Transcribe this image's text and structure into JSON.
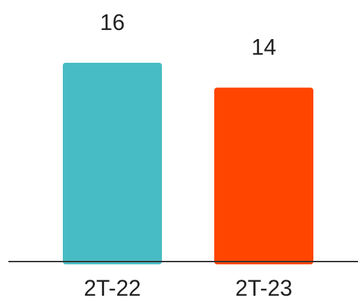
{
  "chart_data": {
    "type": "bar",
    "title": "",
    "xlabel": "",
    "ylabel": "",
    "categories": [
      "2T-22",
      "2T-23"
    ],
    "values": [
      16,
      14
    ],
    "colors": [
      "#48BCC4",
      "#FF4500"
    ],
    "data_labels": [
      "16",
      "14"
    ],
    "ylim": [
      0,
      16
    ],
    "grid": false,
    "legend": "none"
  }
}
